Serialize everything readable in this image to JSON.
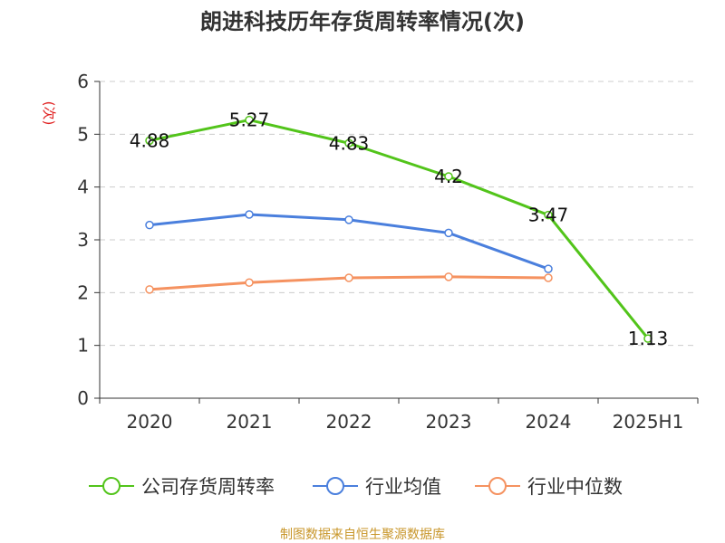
{
  "chart_data": {
    "type": "line",
    "title": "朗进科技历年存货周转率情况(次)",
    "ylabel": "(次)",
    "xlabel": "",
    "categories": [
      "2020",
      "2021",
      "2022",
      "2023",
      "2024",
      "2025H1"
    ],
    "ylim": [
      0,
      6
    ],
    "yticks": [
      0,
      1,
      2,
      3,
      4,
      5,
      6
    ],
    "grid": true,
    "legend_position": "bottom",
    "series": [
      {
        "name": "公司存货周转率",
        "color": "#52c41a",
        "values": [
          4.88,
          5.27,
          4.83,
          4.2,
          3.47,
          1.13
        ],
        "labels": [
          "4.88",
          "5.27",
          "4.83",
          "4.2",
          "3.47",
          "1.13"
        ]
      },
      {
        "name": "行业均值",
        "color": "#4a7fdd",
        "values": [
          3.28,
          3.48,
          3.38,
          3.13,
          2.45,
          null
        ]
      },
      {
        "name": "行业中位数",
        "color": "#f59260",
        "values": [
          2.06,
          2.19,
          2.28,
          2.3,
          2.28,
          null
        ]
      }
    ]
  },
  "footer": {
    "source": "制图数据来自恒生聚源数据库"
  }
}
